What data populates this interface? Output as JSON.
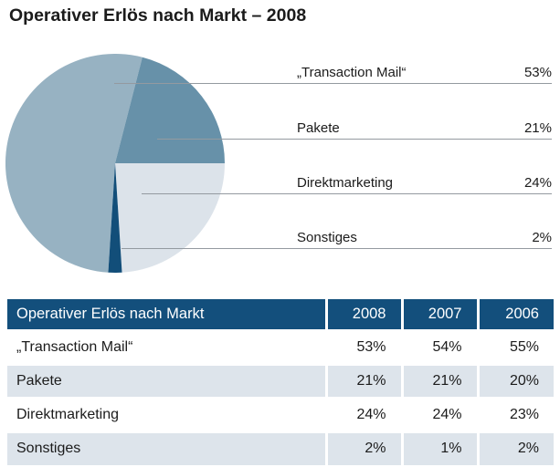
{
  "title": "Operativer Erlös nach Markt – 2008",
  "chart_data": {
    "type": "pie",
    "title": "Operativer Erlös nach Markt – 2008",
    "start_angle_deg": 93.6,
    "legend_position": "right",
    "slices": [
      {
        "label": "„Transaction Mail“",
        "value": 53,
        "display": "53%",
        "color": "#97b2c2"
      },
      {
        "label": "Pakete",
        "value": 21,
        "display": "21%",
        "color": "#6791a9"
      },
      {
        "label": "Direktmarketing",
        "value": 24,
        "display": "24%",
        "color": "#dce3ea"
      },
      {
        "label": "Sonstiges",
        "value": 2,
        "display": "2%",
        "color": "#124e79"
      }
    ]
  },
  "table": {
    "header": [
      "Operativer Erlös nach Markt",
      "2008",
      "2007",
      "2006"
    ],
    "rows": [
      [
        "„Transaction Mail“",
        "53%",
        "54%",
        "55%"
      ],
      [
        "Pakete",
        "21%",
        "21%",
        "20%"
      ],
      [
        "Direktmarketing",
        "24%",
        "24%",
        "23%"
      ],
      [
        "Sonstiges",
        "2%",
        "1%",
        "2%"
      ]
    ]
  },
  "colors": {
    "table_header_bg": "#134f7c",
    "table_row_alt_bg": "#dde4eb",
    "leader_line": "#949aa0"
  }
}
